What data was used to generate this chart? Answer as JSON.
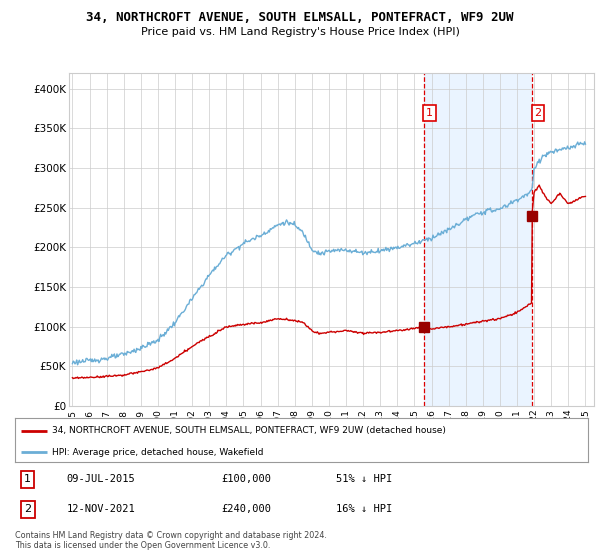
{
  "title": "34, NORTHCROFT AVENUE, SOUTH ELMSALL, PONTEFRACT, WF9 2UW",
  "subtitle": "Price paid vs. HM Land Registry's House Price Index (HPI)",
  "ylim": [
    0,
    420000
  ],
  "yticks": [
    0,
    50000,
    100000,
    150000,
    200000,
    250000,
    300000,
    350000,
    400000
  ],
  "ytick_labels": [
    "£0",
    "£50K",
    "£100K",
    "£150K",
    "£200K",
    "£250K",
    "£300K",
    "£350K",
    "£400K"
  ],
  "hpi_color": "#6baed6",
  "hpi_shade_color": "#ddeeff",
  "price_color": "#cc0000",
  "vline_color": "#dd0000",
  "marker_color": "#990000",
  "sale1_year": 2015.54,
  "sale1_price": 100000,
  "sale2_year": 2021.87,
  "sale2_price": 240000,
  "legend_property": "34, NORTHCROFT AVENUE, SOUTH ELMSALL, PONTEFRACT, WF9 2UW (detached house)",
  "legend_hpi": "HPI: Average price, detached house, Wakefield",
  "table_row1": [
    "1",
    "09-JUL-2015",
    "£100,000",
    "51% ↓ HPI"
  ],
  "table_row2": [
    "2",
    "12-NOV-2021",
    "£240,000",
    "16% ↓ HPI"
  ],
  "footer": "Contains HM Land Registry data © Crown copyright and database right 2024.\nThis data is licensed under the Open Government Licence v3.0.",
  "background_color": "#ffffff",
  "grid_color": "#cccccc"
}
